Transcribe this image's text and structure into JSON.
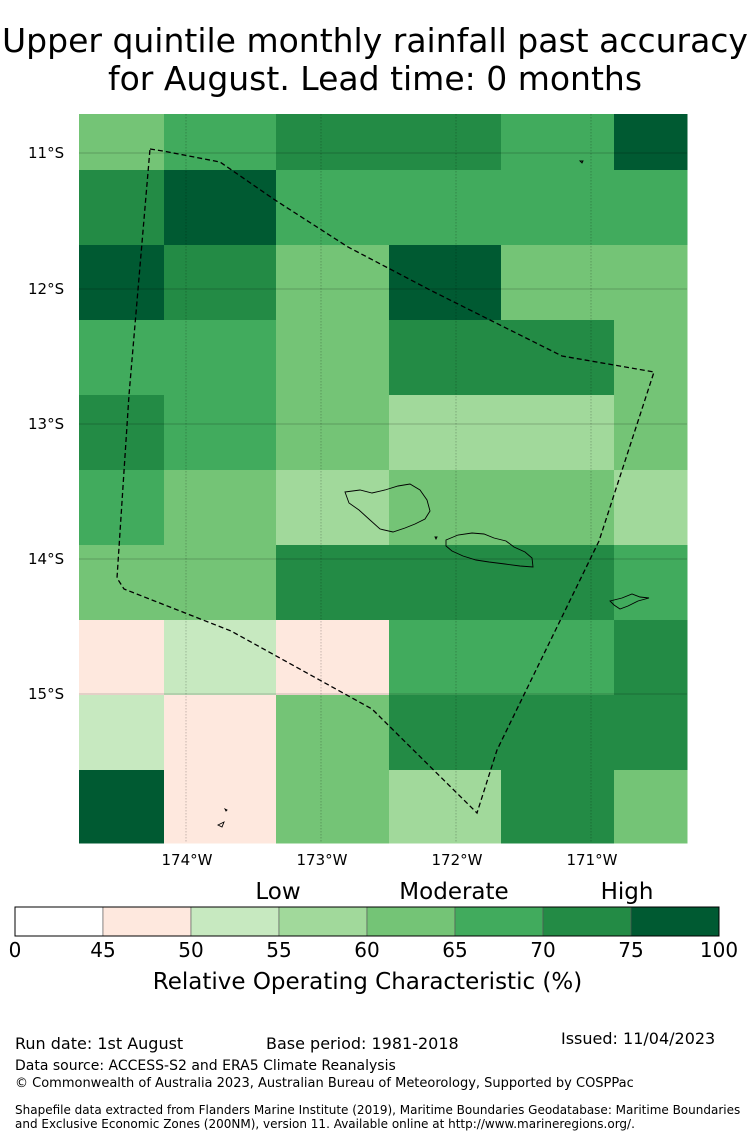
{
  "title": {
    "line1": "Upper quintile monthly rainfall past accuracy",
    "line2": "for August. Lead time: 0 months"
  },
  "map": {
    "lat_labels": [
      "11°S",
      "12°S",
      "13°S",
      "14°S",
      "15°S"
    ],
    "lon_labels": [
      "174°W",
      "173°W",
      "172°W",
      "171°W"
    ],
    "colors": [
      "#ffffff",
      "#fee8de",
      "#c7e9c0",
      "#a1d99b",
      "#74c476",
      "#41ab5d",
      "#238b45",
      "#005a32"
    ],
    "grid_rows": [
      [
        4,
        5,
        6,
        6,
        5,
        7
      ],
      [
        6,
        7,
        5,
        5,
        5,
        5
      ],
      [
        7,
        6,
        4,
        7,
        4,
        4
      ],
      [
        5,
        5,
        4,
        6,
        6,
        4
      ],
      [
        6,
        5,
        4,
        3,
        3,
        4
      ],
      [
        5,
        4,
        3,
        4,
        4,
        3
      ],
      [
        4,
        4,
        6,
        6,
        6,
        5
      ],
      [
        1,
        2,
        1,
        5,
        5,
        6
      ],
      [
        2,
        1,
        4,
        6,
        6,
        6
      ],
      [
        7,
        1,
        4,
        3,
        6,
        4
      ]
    ]
  },
  "colorbar": {
    "categories": [
      "Low",
      "Moderate",
      "High"
    ],
    "ticks": [
      "0",
      "45",
      "50",
      "55",
      "60",
      "65",
      "70",
      "75",
      "100"
    ],
    "title": "Relative Operating Characteristic (%)"
  },
  "footer": {
    "run_date": "Run date: 1st August",
    "base_period": "Base period: 1981-2018",
    "issued": "Issued: 11/04/2023",
    "data_source": "Data source: ACCESS-S2 and ERA5 Climate Reanalysis",
    "copyright": "© Commonwealth of Australia 2023, Australian Bureau of Meteorology, Supported by COSPPac",
    "shapefile_1": "Shapefile data extracted from Flanders Marine Institute (2019), Maritime Boundaries Geodatabase: Maritime Boundaries",
    "shapefile_2": "and Exclusive Economic Zones (200NM), version 11. Available online at http://www.marineregions.org/."
  }
}
